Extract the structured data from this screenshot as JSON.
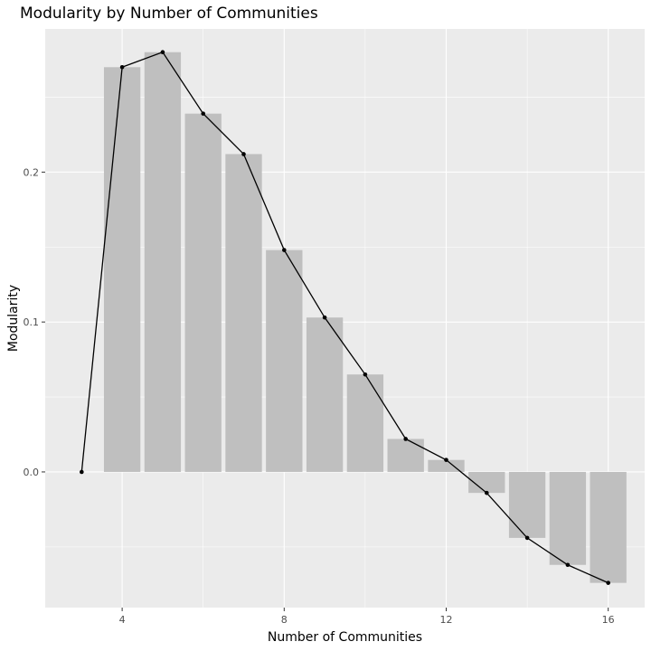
{
  "chart_data": {
    "type": "bar",
    "title": "Modularity by Number of Communities",
    "xlabel": "Number of Communities",
    "ylabel": "Modularity",
    "xlim": [
      2.1,
      16.9
    ],
    "ylim": [
      -0.0905,
      0.2955
    ],
    "x_ticks": [
      4,
      8,
      12,
      16
    ],
    "x_tick_labels": [
      "4",
      "8",
      "12",
      "16"
    ],
    "y_ticks": [
      0.0,
      0.1,
      0.2
    ],
    "y_tick_labels": [
      "0.0",
      "0.1",
      "0.2"
    ],
    "grid": true,
    "bars": {
      "name": "",
      "x": [
        4,
        5,
        6,
        7,
        8,
        9,
        10,
        11,
        12,
        13,
        14,
        15,
        16
      ],
      "values": [
        0.27,
        0.28,
        0.239,
        0.212,
        0.148,
        0.103,
        0.065,
        0.022,
        0.008,
        -0.014,
        -0.044,
        -0.062,
        -0.074
      ]
    },
    "line": {
      "name": "",
      "x": [
        3,
        4,
        5,
        6,
        7,
        8,
        9,
        10,
        11,
        12,
        13,
        14,
        15,
        16
      ],
      "values": [
        0.0,
        0.27,
        0.28,
        0.239,
        0.212,
        0.148,
        0.103,
        0.065,
        0.022,
        0.008,
        -0.014,
        -0.044,
        -0.062,
        -0.074
      ]
    },
    "colors": {
      "panel_background": "#ebebeb",
      "grid_major": "#ffffff",
      "bar_fill": "#bfbfbf",
      "line": "#000000",
      "point": "#000000"
    }
  }
}
